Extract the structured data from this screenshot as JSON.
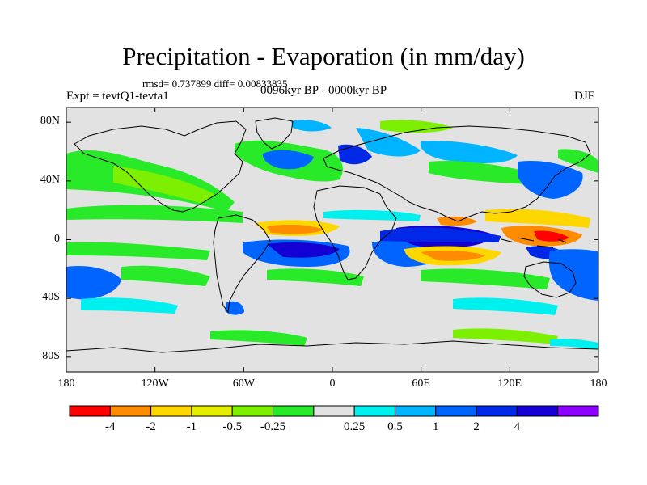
{
  "header": {
    "title": "Precipitation - Evaporation (in mm/day)",
    "stats": "rmsd= 0.737899 diff= 0.00833835",
    "experiment": "Expt = tevtQ1-tevta1",
    "period": "0096kyr BP - 0000kyr BP",
    "season": "DJF"
  },
  "map": {
    "projection": "cylindrical-equidistant",
    "lon_range": [
      -180,
      180
    ],
    "lat_range": [
      -90,
      90
    ],
    "lon_ticks": [
      {
        "value": -180,
        "label": "180"
      },
      {
        "value": -120,
        "label": "120W"
      },
      {
        "value": -60,
        "label": "60W"
      },
      {
        "value": 0,
        "label": "0"
      },
      {
        "value": 60,
        "label": "60E"
      },
      {
        "value": 120,
        "label": "120E"
      },
      {
        "value": 180,
        "label": "180"
      }
    ],
    "lat_ticks": [
      {
        "value": 80,
        "label": "80N"
      },
      {
        "value": 40,
        "label": "40N"
      },
      {
        "value": 0,
        "label": "0"
      },
      {
        "value": -40,
        "label": "40S"
      },
      {
        "value": -80,
        "label": "80S"
      }
    ],
    "background_color": "#e2e2e2"
  },
  "colorbar": {
    "colors": [
      "#ff0000",
      "#ff8c00",
      "#ffd700",
      "#e6ee00",
      "#7cf000",
      "#28ea28",
      "#e2e2e2",
      "#00f0f0",
      "#00b4ff",
      "#0064ff",
      "#0028e6",
      "#1400d2",
      "#8c00ff"
    ],
    "labels": [
      "-4",
      "-2",
      "-1",
      "-0.5",
      "-0.25",
      "0.25",
      "0.5",
      "1",
      "2",
      "4"
    ]
  }
}
